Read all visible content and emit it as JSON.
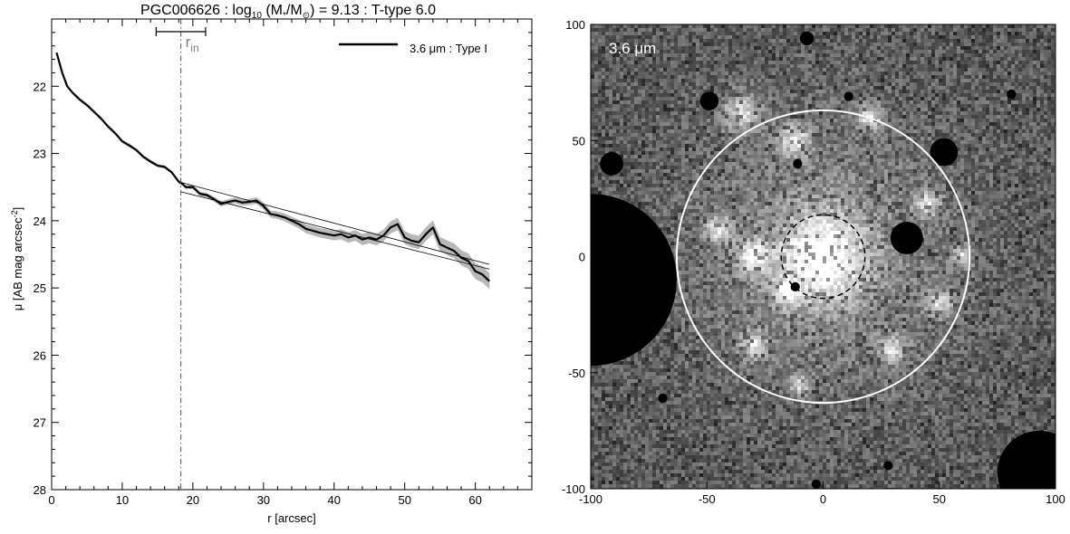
{
  "chart_data": [
    {
      "type": "line",
      "title_parts": {
        "name": "PGC006626 : log",
        "sub10": "10",
        "mid1": " (M",
        "sub_star": "*",
        "mid2": "/M",
        "sub_sun": "⊙",
        "rest": ") = 9.13 : T-type 6.0"
      },
      "xlabel": "r [arcsec]",
      "ylabel_parts": {
        "main": "μ [AB mag arcsec",
        "sup": "-2",
        "end": "]"
      },
      "xlim": [
        0,
        68
      ],
      "ylim": [
        28,
        21
      ],
      "x_ticks": [
        0,
        10,
        20,
        30,
        40,
        50,
        60
      ],
      "y_ticks": [
        22,
        23,
        24,
        25,
        26,
        27,
        28
      ],
      "grid": false,
      "legend": {
        "placement": "top-right",
        "label": "3.6 μm : Type I"
      },
      "rin": {
        "label": "r",
        "sub": "in",
        "value": 18.3,
        "err_low": 14.8,
        "err_high": 21.8
      },
      "series": [
        {
          "name": "3.6 μm : Type I",
          "x": [
            0.7,
            1.5,
            2.2,
            3.0,
            4.0,
            5.0,
            6.0,
            7.0,
            8.0,
            9.0,
            10.0,
            11.0,
            12.0,
            13.0,
            14.0,
            15.0,
            16.0,
            17.0,
            18.0,
            18.5,
            19.0,
            20.0,
            21.0,
            22.0,
            23.0,
            24.0,
            25.0,
            26.0,
            27.0,
            28.0,
            29.0,
            30.0,
            31.0,
            32.0,
            33.0,
            34.0,
            35.0,
            36.0,
            37.0,
            38.0,
            39.0,
            40.0,
            41.0,
            42.0,
            43.0,
            44.0,
            45.0,
            46.0,
            47.0,
            48.0,
            49.0,
            50.0,
            51.0,
            52.0,
            53.0,
            54.0,
            55.0,
            56.0,
            57.0,
            58.0,
            59.0,
            60.0,
            61.0,
            62.0
          ],
          "values": [
            21.5,
            21.8,
            22.0,
            22.1,
            22.2,
            22.28,
            22.38,
            22.48,
            22.6,
            22.7,
            22.82,
            22.88,
            22.95,
            23.05,
            23.12,
            23.18,
            23.2,
            23.28,
            23.42,
            23.45,
            23.5,
            23.5,
            23.6,
            23.62,
            23.68,
            23.75,
            23.72,
            23.7,
            23.73,
            23.72,
            23.7,
            23.78,
            23.9,
            23.92,
            23.95,
            24.0,
            24.05,
            24.12,
            24.15,
            24.18,
            24.2,
            24.22,
            24.2,
            24.25,
            24.22,
            24.28,
            24.25,
            24.28,
            24.22,
            24.1,
            24.05,
            24.25,
            24.3,
            24.32,
            24.2,
            24.1,
            24.35,
            24.4,
            24.45,
            24.55,
            24.6,
            24.75,
            24.8,
            24.9
          ]
        }
      ],
      "fits": [
        {
          "x": [
            18.3,
            62.0
          ],
          "values": [
            23.43,
            24.65
          ]
        },
        {
          "x": [
            18.3,
            62.0
          ],
          "values": [
            23.57,
            24.72
          ]
        }
      ]
    },
    {
      "type": "heatmap",
      "label": "3.6 μm",
      "xlim": [
        -100,
        100
      ],
      "ylim": [
        -100,
        100
      ],
      "x_ticks": [
        -100,
        -50,
        0,
        50,
        100
      ],
      "y_ticks": [
        -100,
        -50,
        0,
        50,
        100
      ],
      "outer_circle_radius": 63,
      "inner_circle_radius": 18,
      "masks": [
        {
          "x": -100,
          "y": -10,
          "r": 37
        },
        {
          "x": 93,
          "y": -93,
          "r": 18
        },
        {
          "x": 52,
          "y": 45,
          "r": 6
        },
        {
          "x": -91,
          "y": 40,
          "r": 5
        },
        {
          "x": 36,
          "y": 8,
          "r": 7
        },
        {
          "x": -49,
          "y": 67,
          "r": 4
        },
        {
          "x": -7,
          "y": 94,
          "r": 3
        },
        {
          "x": 28,
          "y": -90,
          "r": 2
        },
        {
          "x": -73,
          "y": 3,
          "r": 2
        },
        {
          "x": -11,
          "y": 40,
          "r": 2
        },
        {
          "x": -12,
          "y": -13,
          "r": 2
        },
        {
          "x": 11,
          "y": 69,
          "r": 2
        },
        {
          "x": -69,
          "y": -61,
          "r": 2
        },
        {
          "x": 81,
          "y": 70,
          "r": 2
        },
        {
          "x": -3,
          "y": -98,
          "r": 2
        }
      ]
    }
  ],
  "colors": {
    "profile": "#000000",
    "error_band": "#b8b8b8",
    "rin_line": "#555555",
    "rin_label": "#808080",
    "circle": "#ffffff",
    "inner_circle": "#000000"
  }
}
